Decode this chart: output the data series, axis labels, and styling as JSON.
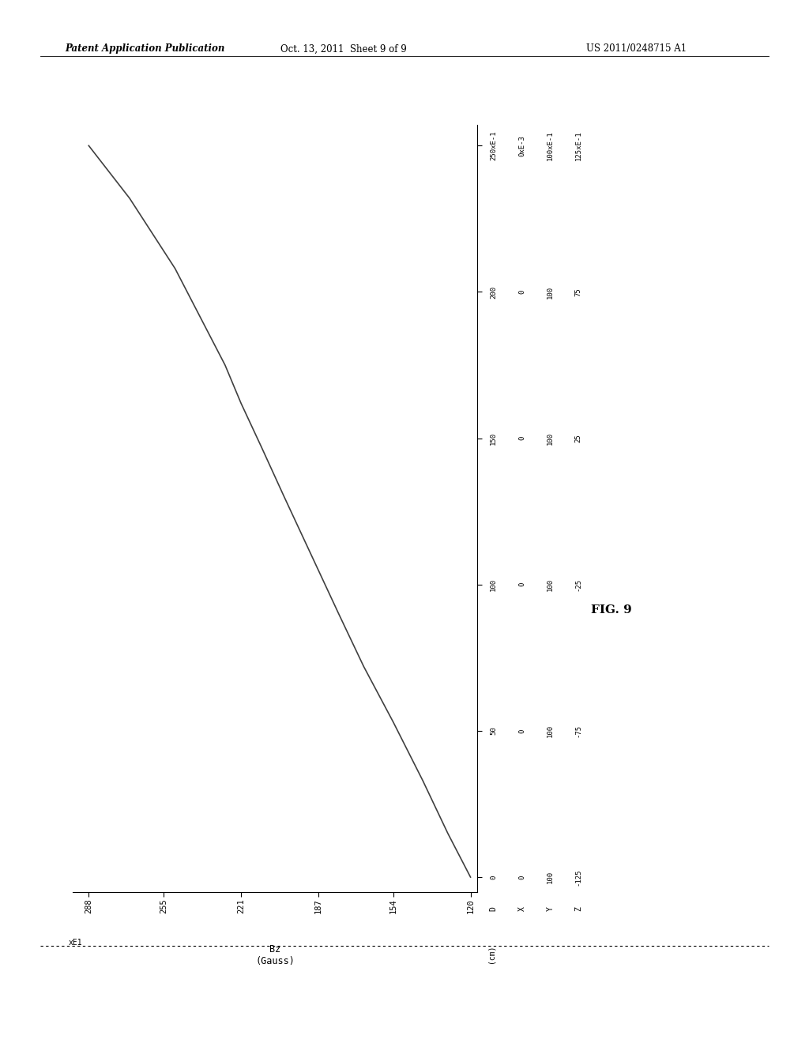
{
  "header_left": "Patent Application Publication",
  "header_center": "Oct. 13, 2011  Sheet 9 of 9",
  "header_right": "US 2011/0248715 A1",
  "fig_label": "FIG. 9",
  "xlabel_line1": "Bz",
  "xlabel_line2": "(Gauss)",
  "x_scale_label": "xE1",
  "x_tick_display": [
    "288",
    "255",
    "221",
    "187",
    "154",
    "120"
  ],
  "x_tick_values": [
    288,
    255,
    221,
    187,
    154,
    120
  ],
  "xlim": [
    295,
    117
  ],
  "ylim": [
    -130,
    132
  ],
  "y_tick_values": [
    -125,
    -75,
    -25,
    25,
    75,
    125
  ],
  "right_col_D": [
    "0",
    "50",
    "100",
    "150",
    "200",
    "250xE-1"
  ],
  "right_col_X": [
    "0",
    "0",
    "0",
    "0",
    "0",
    "0xE-3"
  ],
  "right_col_Y": [
    "100",
    "100",
    "100",
    "100",
    "100",
    "100xE-1"
  ],
  "right_col_Z": [
    "-125",
    "-75",
    "-25",
    "25",
    "75",
    "125xE-1"
  ],
  "col_headers": [
    "D",
    "X",
    "Y",
    "Z"
  ],
  "col_units": "(cm)",
  "curve_color": "#404040",
  "bg_color": "#ffffff",
  "line_width": 1.2,
  "curve_bz": [
    288,
    280,
    270,
    260,
    250,
    240,
    228,
    221,
    212,
    202,
    190,
    178,
    167,
    154,
    141,
    130,
    120
  ],
  "curve_z": [
    125,
    117,
    107,
    95,
    83,
    68,
    50,
    37,
    22,
    5,
    -15,
    -35,
    -53,
    -72,
    -92,
    -110,
    -125
  ]
}
